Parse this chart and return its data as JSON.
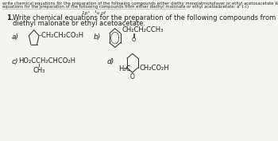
{
  "bg_color": "#f5f5f0",
  "header_text1": "write chemical equations for the preparation of the following compounds either diethy monolatmonolayer or ethyl acetosacetate Write chemical",
  "header_text2": "equations for the preparation of the following compounds from either diethyl malonate or ethyl acetosacetate: a' t c)",
  "page_marker": "1p°   ¹u of",
  "number_label": "1.",
  "main_line1": "Write chemical equations for the preparation of the following compounds from either",
  "main_line2": "diethyl malonate or ethyl acetoacetate:",
  "label_a": "a)",
  "label_b": "b)",
  "label_c": "c)",
  "label_d": "d)",
  "text_a": "-CH₂CH₂CO₂H",
  "text_b_top": "CH₂CH₂CCH₃",
  "text_b_o": "O",
  "text_c": "HO₂CCH₂CHCO₂H",
  "text_c2": "CH₃",
  "text_d_left": "H₃C",
  "text_d_o": "O",
  "text_d_right": "CH₂CO₂H",
  "font_size_header": 3.8,
  "font_size_main": 6.0,
  "font_size_label": 6.5,
  "font_size_chem": 6.0,
  "text_color": "#222222",
  "line_color": "#333333"
}
